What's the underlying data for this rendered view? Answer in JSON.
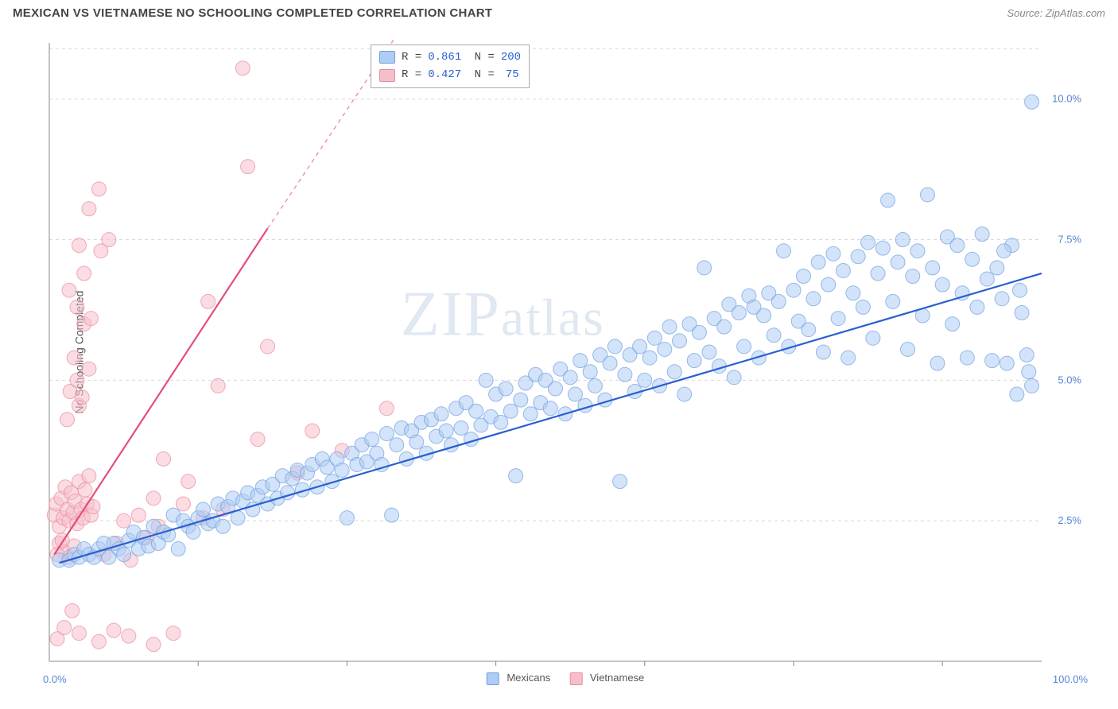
{
  "header": {
    "title": "MEXICAN VS VIETNAMESE NO SCHOOLING COMPLETED CORRELATION CHART",
    "source": "Source: ZipAtlas.com"
  },
  "watermark": {
    "a": "ZIP",
    "b": "atlas"
  },
  "chart": {
    "type": "scatter",
    "ylabel": "No Schooling Completed",
    "xlim": [
      0,
      100
    ],
    "ylim": [
      0,
      11
    ],
    "yticks": [
      {
        "v": 2.5,
        "label": "2.5%"
      },
      {
        "v": 5.0,
        "label": "5.0%"
      },
      {
        "v": 7.5,
        "label": "7.5%"
      },
      {
        "v": 10.0,
        "label": "10.0%"
      }
    ],
    "xtick_left": "0.0%",
    "xtick_right": "100.0%",
    "xticks_minor": [
      15,
      30,
      45,
      60,
      75,
      90
    ],
    "grid_color": "#d8d8d8",
    "axis_color": "#888888",
    "background": "#ffffff",
    "marker_radius": 9,
    "marker_opacity": 0.55,
    "series": {
      "mexicans": {
        "label": "Mexicans",
        "fill": "#aeccf4",
        "stroke": "#6f9fe0",
        "line_color": "#2a5fd0",
        "line_width": 2.2,
        "R": "0.861",
        "N": "200",
        "trend": {
          "x1": 1,
          "y1": 1.75,
          "x2": 100,
          "y2": 6.9
        }
      },
      "vietnamese": {
        "label": "Vietnamese",
        "fill": "#f5bfca",
        "stroke": "#e88aa0",
        "line_color": "#e64d78",
        "line_width": 2.2,
        "R": "0.427",
        "N": "75",
        "trend_solid": {
          "x1": 0.5,
          "y1": 1.9,
          "x2": 22,
          "y2": 7.7
        },
        "trend_dash": {
          "x1": 22,
          "y1": 7.7,
          "x2": 36,
          "y2": 11.4
        }
      }
    },
    "mexicans_points": [
      [
        1,
        1.8
      ],
      [
        2,
        1.8
      ],
      [
        2.5,
        1.9
      ],
      [
        3,
        1.85
      ],
      [
        3.5,
        2.0
      ],
      [
        4,
        1.9
      ],
      [
        4.5,
        1.85
      ],
      [
        5,
        2.0
      ],
      [
        5.5,
        2.1
      ],
      [
        6,
        1.85
      ],
      [
        6.5,
        2.1
      ],
      [
        7,
        2.0
      ],
      [
        7.5,
        1.9
      ],
      [
        8,
        2.15
      ],
      [
        8.5,
        2.3
      ],
      [
        9,
        2.0
      ],
      [
        9.5,
        2.2
      ],
      [
        10,
        2.05
      ],
      [
        10.5,
        2.4
      ],
      [
        11,
        2.1
      ],
      [
        11.5,
        2.3
      ],
      [
        12,
        2.25
      ],
      [
        12.5,
        2.6
      ],
      [
        13,
        2.0
      ],
      [
        13.5,
        2.5
      ],
      [
        14,
        2.4
      ],
      [
        14.5,
        2.3
      ],
      [
        15,
        2.55
      ],
      [
        15.5,
        2.7
      ],
      [
        16,
        2.45
      ],
      [
        16.5,
        2.5
      ],
      [
        17,
        2.8
      ],
      [
        17.5,
        2.4
      ],
      [
        18,
        2.75
      ],
      [
        18.5,
        2.9
      ],
      [
        19,
        2.55
      ],
      [
        19.5,
        2.85
      ],
      [
        20,
        3.0
      ],
      [
        20.5,
        2.7
      ],
      [
        21,
        2.95
      ],
      [
        21.5,
        3.1
      ],
      [
        22,
        2.8
      ],
      [
        22.5,
        3.15
      ],
      [
        23,
        2.9
      ],
      [
        23.5,
        3.3
      ],
      [
        24,
        3.0
      ],
      [
        24.5,
        3.25
      ],
      [
        25,
        3.4
      ],
      [
        25.5,
        3.05
      ],
      [
        26,
        3.35
      ],
      [
        26.5,
        3.5
      ],
      [
        27,
        3.1
      ],
      [
        27.5,
        3.6
      ],
      [
        28,
        3.45
      ],
      [
        28.5,
        3.2
      ],
      [
        29,
        3.6
      ],
      [
        29.5,
        3.4
      ],
      [
        30,
        2.55
      ],
      [
        30.5,
        3.7
      ],
      [
        31,
        3.5
      ],
      [
        31.5,
        3.85
      ],
      [
        32,
        3.55
      ],
      [
        32.5,
        3.95
      ],
      [
        33,
        3.7
      ],
      [
        33.5,
        3.5
      ],
      [
        34,
        4.05
      ],
      [
        34.5,
        2.6
      ],
      [
        35,
        3.85
      ],
      [
        35.5,
        4.15
      ],
      [
        36,
        3.6
      ],
      [
        36.5,
        4.1
      ],
      [
        37,
        3.9
      ],
      [
        37.5,
        4.25
      ],
      [
        38,
        3.7
      ],
      [
        38.5,
        4.3
      ],
      [
        39,
        4.0
      ],
      [
        39.5,
        4.4
      ],
      [
        40,
        4.1
      ],
      [
        40.5,
        3.85
      ],
      [
        41,
        4.5
      ],
      [
        41.5,
        4.15
      ],
      [
        42,
        4.6
      ],
      [
        42.5,
        3.95
      ],
      [
        43,
        4.45
      ],
      [
        43.5,
        4.2
      ],
      [
        44,
        5.0
      ],
      [
        44.5,
        4.35
      ],
      [
        45,
        4.75
      ],
      [
        45.5,
        4.25
      ],
      [
        46,
        4.85
      ],
      [
        46.5,
        4.45
      ],
      [
        47,
        3.3
      ],
      [
        47.5,
        4.65
      ],
      [
        48,
        4.95
      ],
      [
        48.5,
        4.4
      ],
      [
        49,
        5.1
      ],
      [
        49.5,
        4.6
      ],
      [
        50,
        5.0
      ],
      [
        50.5,
        4.5
      ],
      [
        51,
        4.85
      ],
      [
        51.5,
        5.2
      ],
      [
        52,
        4.4
      ],
      [
        52.5,
        5.05
      ],
      [
        53,
        4.75
      ],
      [
        53.5,
        5.35
      ],
      [
        54,
        4.55
      ],
      [
        54.5,
        5.15
      ],
      [
        55,
        4.9
      ],
      [
        55.5,
        5.45
      ],
      [
        56,
        4.65
      ],
      [
        56.5,
        5.3
      ],
      [
        57,
        5.6
      ],
      [
        57.5,
        3.2
      ],
      [
        58,
        5.1
      ],
      [
        58.5,
        5.45
      ],
      [
        59,
        4.8
      ],
      [
        59.5,
        5.6
      ],
      [
        60,
        5.0
      ],
      [
        60.5,
        5.4
      ],
      [
        61,
        5.75
      ],
      [
        61.5,
        4.9
      ],
      [
        62,
        5.55
      ],
      [
        62.5,
        5.95
      ],
      [
        63,
        5.15
      ],
      [
        63.5,
        5.7
      ],
      [
        64,
        4.75
      ],
      [
        64.5,
        6.0
      ],
      [
        65,
        5.35
      ],
      [
        65.5,
        5.85
      ],
      [
        66,
        7.0
      ],
      [
        66.5,
        5.5
      ],
      [
        67,
        6.1
      ],
      [
        67.5,
        5.25
      ],
      [
        68,
        5.95
      ],
      [
        68.5,
        6.35
      ],
      [
        69,
        5.05
      ],
      [
        69.5,
        6.2
      ],
      [
        70,
        5.6
      ],
      [
        70.5,
        6.5
      ],
      [
        71,
        6.3
      ],
      [
        71.5,
        5.4
      ],
      [
        72,
        6.15
      ],
      [
        72.5,
        6.55
      ],
      [
        73,
        5.8
      ],
      [
        73.5,
        6.4
      ],
      [
        74,
        7.3
      ],
      [
        74.5,
        5.6
      ],
      [
        75,
        6.6
      ],
      [
        75.5,
        6.05
      ],
      [
        76,
        6.85
      ],
      [
        76.5,
        5.9
      ],
      [
        77,
        6.45
      ],
      [
        77.5,
        7.1
      ],
      [
        78,
        5.5
      ],
      [
        78.5,
        6.7
      ],
      [
        79,
        7.25
      ],
      [
        79.5,
        6.1
      ],
      [
        80,
        6.95
      ],
      [
        80.5,
        5.4
      ],
      [
        81,
        6.55
      ],
      [
        81.5,
        7.2
      ],
      [
        82,
        6.3
      ],
      [
        82.5,
        7.45
      ],
      [
        83,
        5.75
      ],
      [
        83.5,
        6.9
      ],
      [
        84,
        7.35
      ],
      [
        84.5,
        8.2
      ],
      [
        85,
        6.4
      ],
      [
        85.5,
        7.1
      ],
      [
        86,
        7.5
      ],
      [
        86.5,
        5.55
      ],
      [
        87,
        6.85
      ],
      [
        87.5,
        7.3
      ],
      [
        88,
        6.15
      ],
      [
        88.5,
        8.3
      ],
      [
        89,
        7.0
      ],
      [
        89.5,
        5.3
      ],
      [
        90,
        6.7
      ],
      [
        90.5,
        7.55
      ],
      [
        91,
        6.0
      ],
      [
        91.5,
        7.4
      ],
      [
        92,
        6.55
      ],
      [
        92.5,
        5.4
      ],
      [
        93,
        7.15
      ],
      [
        93.5,
        6.3
      ],
      [
        94,
        7.6
      ],
      [
        94.5,
        6.8
      ],
      [
        95,
        5.35
      ],
      [
        95.5,
        7.0
      ],
      [
        96,
        6.45
      ],
      [
        96.5,
        5.3
      ],
      [
        97,
        7.4
      ],
      [
        97.5,
        4.75
      ],
      [
        98,
        6.2
      ],
      [
        98.5,
        5.45
      ],
      [
        99,
        4.9
      ],
      [
        99,
        9.95
      ],
      [
        98.7,
        5.15
      ],
      [
        97.8,
        6.6
      ],
      [
        96.2,
        7.3
      ]
    ],
    "vietnamese_points": [
      [
        0.5,
        2.6
      ],
      [
        0.7,
        2.8
      ],
      [
        1.0,
        2.4
      ],
      [
        1.2,
        2.9
      ],
      [
        1.4,
        2.55
      ],
      [
        1.6,
        3.1
      ],
      [
        1.8,
        2.7
      ],
      [
        2.0,
        2.5
      ],
      [
        2.2,
        3.0
      ],
      [
        2.4,
        2.65
      ],
      [
        2.6,
        2.85
      ],
      [
        2.8,
        2.45
      ],
      [
        3.0,
        3.2
      ],
      [
        3.2,
        2.7
      ],
      [
        3.4,
        2.55
      ],
      [
        3.6,
        3.05
      ],
      [
        3.8,
        2.8
      ],
      [
        4.0,
        3.3
      ],
      [
        4.2,
        2.6
      ],
      [
        4.4,
        2.75
      ],
      [
        1.0,
        2.1
      ],
      [
        1.5,
        1.95
      ],
      [
        2.0,
        1.85
      ],
      [
        2.5,
        2.05
      ],
      [
        0.8,
        1.9
      ],
      [
        1.3,
        2.15
      ],
      [
        2.1,
        4.8
      ],
      [
        2.5,
        5.4
      ],
      [
        3.0,
        4.55
      ],
      [
        3.5,
        6.0
      ],
      [
        4.0,
        5.2
      ],
      [
        1.8,
        4.3
      ],
      [
        2.8,
        5.0
      ],
      [
        3.3,
        4.7
      ],
      [
        2.0,
        6.6
      ],
      [
        2.8,
        6.3
      ],
      [
        3.5,
        6.9
      ],
      [
        4.2,
        6.1
      ],
      [
        3.0,
        7.4
      ],
      [
        5.2,
        7.3
      ],
      [
        6.0,
        7.5
      ],
      [
        4.0,
        8.05
      ],
      [
        5.0,
        8.4
      ],
      [
        0.8,
        0.4
      ],
      [
        1.5,
        0.6
      ],
      [
        2.3,
        0.9
      ],
      [
        3.0,
        0.5
      ],
      [
        5.0,
        0.35
      ],
      [
        6.5,
        0.55
      ],
      [
        8.0,
        0.45
      ],
      [
        10.5,
        0.3
      ],
      [
        12.5,
        0.5
      ],
      [
        5.5,
        1.9
      ],
      [
        6.8,
        2.1
      ],
      [
        7.5,
        2.5
      ],
      [
        8.2,
        1.8
      ],
      [
        9.0,
        2.6
      ],
      [
        9.8,
        2.2
      ],
      [
        10.5,
        2.9
      ],
      [
        11.0,
        2.4
      ],
      [
        11.5,
        3.6
      ],
      [
        13.5,
        2.8
      ],
      [
        14.0,
        3.2
      ],
      [
        15.5,
        2.55
      ],
      [
        16.0,
        6.4
      ],
      [
        17.0,
        4.9
      ],
      [
        17.5,
        2.7
      ],
      [
        19.5,
        10.55
      ],
      [
        20.0,
        8.8
      ],
      [
        21.0,
        3.95
      ],
      [
        22.0,
        5.6
      ],
      [
        25.0,
        3.35
      ],
      [
        26.5,
        4.1
      ],
      [
        29.5,
        3.75
      ],
      [
        34.0,
        4.5
      ]
    ]
  },
  "bottom_legend": {
    "items": [
      {
        "key": "mexicans",
        "label": "Mexicans"
      },
      {
        "key": "vietnamese",
        "label": "Vietnamese"
      }
    ]
  }
}
